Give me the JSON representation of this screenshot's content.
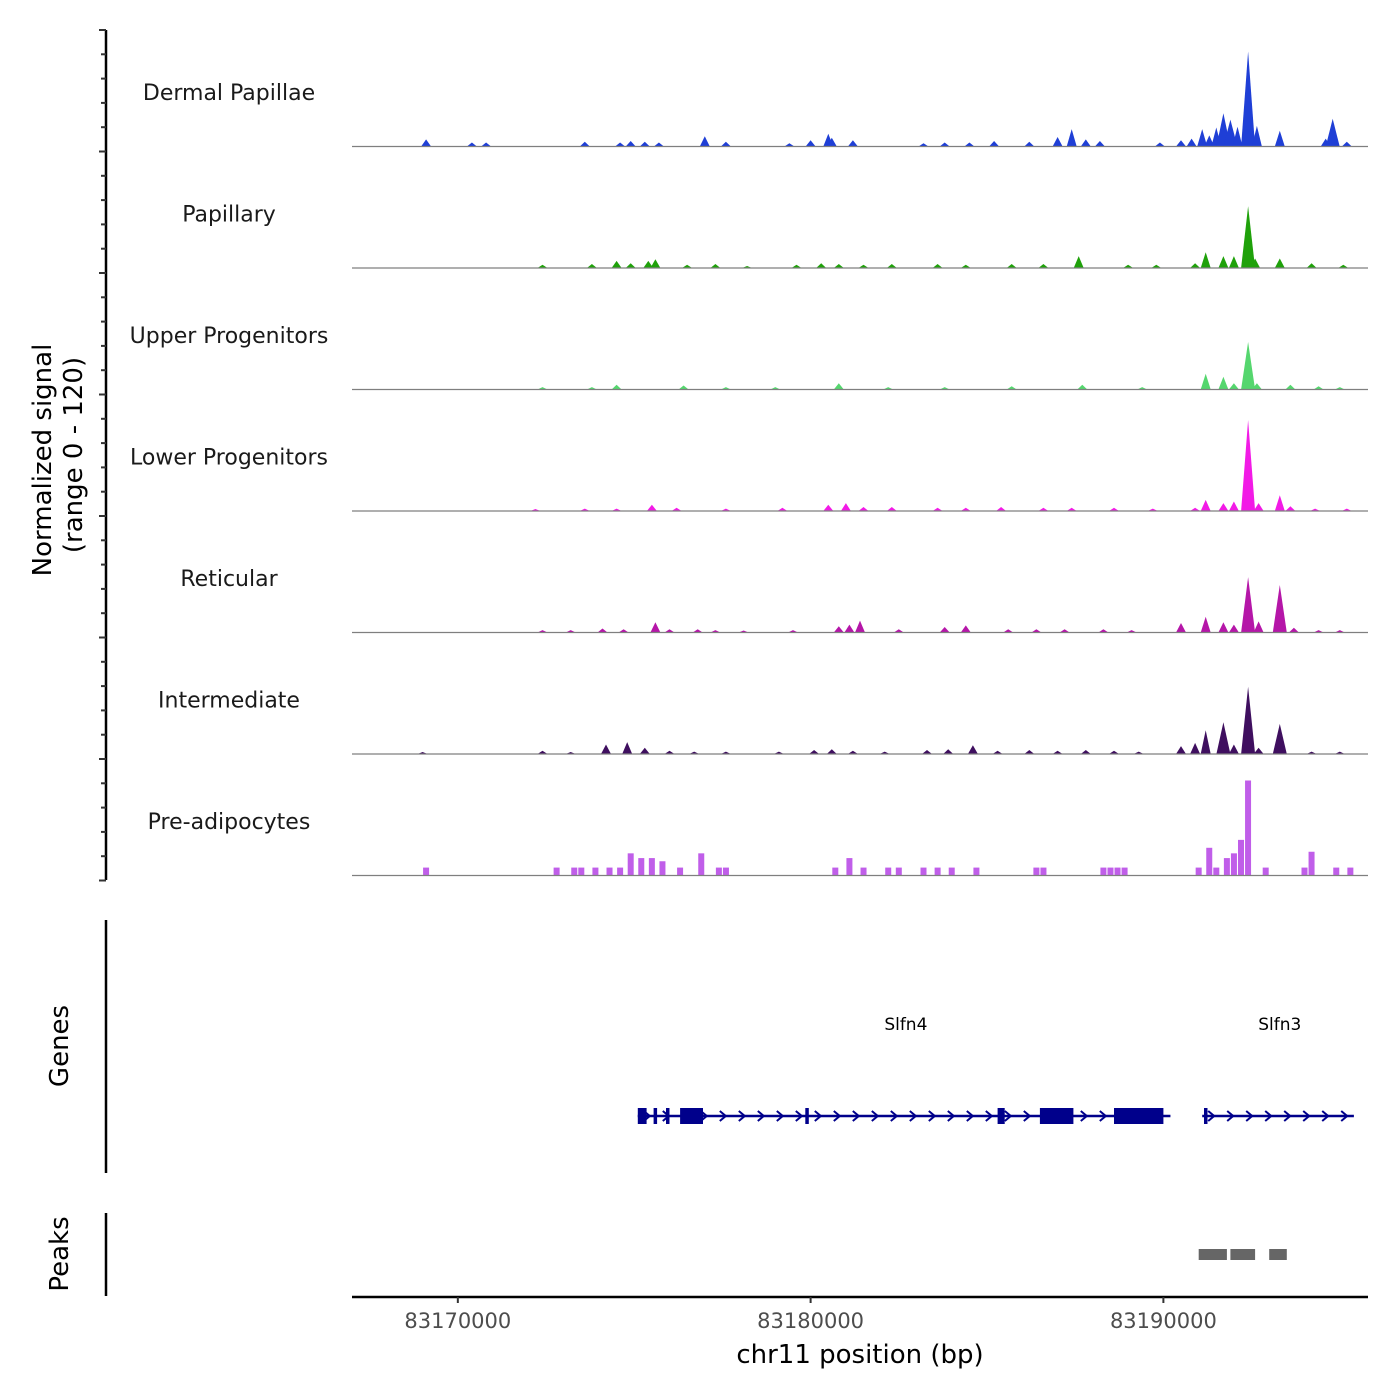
{
  "chart_data": {
    "type": "area",
    "title": "",
    "ylabel_line1": "Normalized signal",
    "ylabel_line2": "(range 0 - 120)",
    "xlabel": "chr11 position (bp)",
    "xlim": [
      83167000,
      83195800
    ],
    "ylim": [
      0,
      120
    ],
    "xticks": [
      {
        "value": 83170000,
        "label": "83170000"
      },
      {
        "value": 83180000,
        "label": "83180000"
      },
      {
        "value": 83190000,
        "label": "83190000"
      }
    ],
    "tracks": [
      {
        "name": "Dermal Papillae",
        "color": "#1f3fd6",
        "style": "dense",
        "peaks": [
          [
            83169100,
            9
          ],
          [
            83170400,
            5
          ],
          [
            83170800,
            5
          ],
          [
            83173600,
            6
          ],
          [
            83174600,
            5
          ],
          [
            83174900,
            7
          ],
          [
            83175300,
            6
          ],
          [
            83175700,
            5
          ],
          [
            83177000,
            13
          ],
          [
            83177600,
            6
          ],
          [
            83179400,
            4
          ],
          [
            83180000,
            8
          ],
          [
            83180500,
            16
          ],
          [
            83180600,
            11
          ],
          [
            83181200,
            8
          ],
          [
            83183200,
            4
          ],
          [
            83183800,
            5
          ],
          [
            83184500,
            5
          ],
          [
            83185200,
            7
          ],
          [
            83186200,
            6
          ],
          [
            83187000,
            12
          ],
          [
            83187400,
            22
          ],
          [
            83187800,
            9
          ],
          [
            83188200,
            7
          ],
          [
            83189900,
            5
          ],
          [
            83190500,
            8
          ],
          [
            83190800,
            10
          ],
          [
            83191100,
            22
          ],
          [
            83191300,
            14
          ],
          [
            83191500,
            24
          ],
          [
            83191700,
            42
          ],
          [
            83191900,
            34
          ],
          [
            83192100,
            25
          ],
          [
            83192400,
            120
          ],
          [
            83192650,
            26
          ],
          [
            83193300,
            20
          ],
          [
            83194600,
            10
          ],
          [
            83194800,
            35
          ],
          [
            83195200,
            6
          ]
        ]
      },
      {
        "name": "Papillary",
        "color": "#1fa10a",
        "style": "dense",
        "peaks": [
          [
            83172400,
            4
          ],
          [
            83173800,
            5
          ],
          [
            83174500,
            9
          ],
          [
            83174900,
            6
          ],
          [
            83175400,
            9
          ],
          [
            83175600,
            11
          ],
          [
            83176500,
            4
          ],
          [
            83177300,
            5
          ],
          [
            83178200,
            2
          ],
          [
            83179600,
            4
          ],
          [
            83180300,
            6
          ],
          [
            83180800,
            5
          ],
          [
            83181500,
            4
          ],
          [
            83182300,
            5
          ],
          [
            83183600,
            5
          ],
          [
            83184400,
            4
          ],
          [
            83185700,
            5
          ],
          [
            83186600,
            5
          ],
          [
            83187600,
            15
          ],
          [
            83189000,
            4
          ],
          [
            83189800,
            4
          ],
          [
            83190900,
            6
          ],
          [
            83191200,
            20
          ],
          [
            83191700,
            15
          ],
          [
            83192000,
            15
          ],
          [
            83192400,
            78
          ],
          [
            83192600,
            12
          ],
          [
            83193300,
            12
          ],
          [
            83194200,
            6
          ],
          [
            83195100,
            4
          ]
        ]
      },
      {
        "name": "Upper Progenitors",
        "color": "#55d66e",
        "style": "dense",
        "peaks": [
          [
            83172400,
            3
          ],
          [
            83173800,
            3
          ],
          [
            83174500,
            6
          ],
          [
            83176400,
            5
          ],
          [
            83177600,
            3
          ],
          [
            83179000,
            3
          ],
          [
            83180800,
            8
          ],
          [
            83182200,
            3
          ],
          [
            83183800,
            3
          ],
          [
            83185700,
            4
          ],
          [
            83187700,
            6
          ],
          [
            83189400,
            3
          ],
          [
            83191200,
            20
          ],
          [
            83191700,
            16
          ],
          [
            83192000,
            8
          ],
          [
            83192400,
            60
          ],
          [
            83192650,
            8
          ],
          [
            83193600,
            6
          ],
          [
            83194400,
            4
          ],
          [
            83195000,
            3
          ]
        ]
      },
      {
        "name": "Lower Progenitors",
        "color": "#f21ae6",
        "style": "dense",
        "peaks": [
          [
            83172200,
            2
          ],
          [
            83173600,
            3
          ],
          [
            83174500,
            3
          ],
          [
            83175500,
            8
          ],
          [
            83176200,
            4
          ],
          [
            83177600,
            3
          ],
          [
            83179200,
            4
          ],
          [
            83180500,
            8
          ],
          [
            83181000,
            10
          ],
          [
            83181500,
            5
          ],
          [
            83182300,
            5
          ],
          [
            83183600,
            4
          ],
          [
            83184400,
            4
          ],
          [
            83185400,
            5
          ],
          [
            83186600,
            4
          ],
          [
            83187400,
            4
          ],
          [
            83188600,
            4
          ],
          [
            83189700,
            3
          ],
          [
            83190900,
            4
          ],
          [
            83191200,
            14
          ],
          [
            83191700,
            10
          ],
          [
            83192000,
            12
          ],
          [
            83192400,
            115
          ],
          [
            83192700,
            10
          ],
          [
            83193300,
            20
          ],
          [
            83193600,
            6
          ],
          [
            83194300,
            3
          ],
          [
            83195200,
            3
          ]
        ]
      },
      {
        "name": "Reticular",
        "color": "#b516a8",
        "style": "dense",
        "peaks": [
          [
            83172400,
            3
          ],
          [
            83173200,
            3
          ],
          [
            83174100,
            5
          ],
          [
            83174700,
            4
          ],
          [
            83175600,
            13
          ],
          [
            83176000,
            4
          ],
          [
            83176800,
            4
          ],
          [
            83177300,
            3
          ],
          [
            83178100,
            2
          ],
          [
            83179500,
            3
          ],
          [
            83180800,
            8
          ],
          [
            83181100,
            10
          ],
          [
            83181400,
            15
          ],
          [
            83182500,
            4
          ],
          [
            83183800,
            7
          ],
          [
            83184400,
            9
          ],
          [
            83185600,
            4
          ],
          [
            83186400,
            4
          ],
          [
            83187200,
            4
          ],
          [
            83188300,
            4
          ],
          [
            83189100,
            3
          ],
          [
            83190500,
            12
          ],
          [
            83191200,
            20
          ],
          [
            83191700,
            13
          ],
          [
            83192000,
            10
          ],
          [
            83192400,
            70
          ],
          [
            83192700,
            14
          ],
          [
            83193300,
            60
          ],
          [
            83193700,
            6
          ],
          [
            83194400,
            3
          ],
          [
            83195000,
            3
          ]
        ]
      },
      {
        "name": "Intermediate",
        "color": "#3f0f5f",
        "style": "dense",
        "peaks": [
          [
            83169000,
            2
          ],
          [
            83172400,
            4
          ],
          [
            83173200,
            2
          ],
          [
            83174200,
            12
          ],
          [
            83174800,
            15
          ],
          [
            83175300,
            8
          ],
          [
            83176000,
            4
          ],
          [
            83176700,
            3
          ],
          [
            83177600,
            3
          ],
          [
            83179100,
            3
          ],
          [
            83180100,
            5
          ],
          [
            83180600,
            6
          ],
          [
            83181200,
            4
          ],
          [
            83182100,
            3
          ],
          [
            83183300,
            5
          ],
          [
            83183900,
            6
          ],
          [
            83184600,
            11
          ],
          [
            83185300,
            4
          ],
          [
            83186200,
            5
          ],
          [
            83187000,
            4
          ],
          [
            83187800,
            5
          ],
          [
            83188600,
            4
          ],
          [
            83189300,
            3
          ],
          [
            83190500,
            10
          ],
          [
            83190900,
            14
          ],
          [
            83191200,
            30
          ],
          [
            83191700,
            40
          ],
          [
            83192000,
            12
          ],
          [
            83192400,
            85
          ],
          [
            83192700,
            8
          ],
          [
            83193300,
            38
          ],
          [
            83194200,
            3
          ],
          [
            83195000,
            3
          ]
        ]
      },
      {
        "name": "Pre-adipocytes",
        "color": "#c05ee9",
        "style": "sparse",
        "peaks": [
          [
            83169100,
            10
          ],
          [
            83172800,
            10
          ],
          [
            83173300,
            10
          ],
          [
            83173500,
            10
          ],
          [
            83173900,
            10
          ],
          [
            83174300,
            10
          ],
          [
            83174600,
            10
          ],
          [
            83174900,
            28
          ],
          [
            83175200,
            22
          ],
          [
            83175500,
            22
          ],
          [
            83175800,
            18
          ],
          [
            83176300,
            10
          ],
          [
            83176900,
            28
          ],
          [
            83177400,
            10
          ],
          [
            83177600,
            10
          ],
          [
            83180700,
            10
          ],
          [
            83181100,
            22
          ],
          [
            83181500,
            10
          ],
          [
            83182200,
            10
          ],
          [
            83182500,
            10
          ],
          [
            83183200,
            10
          ],
          [
            83183600,
            10
          ],
          [
            83184000,
            10
          ],
          [
            83184700,
            10
          ],
          [
            83186400,
            10
          ],
          [
            83186600,
            10
          ],
          [
            83188300,
            10
          ],
          [
            83188500,
            10
          ],
          [
            83188700,
            10
          ],
          [
            83188900,
            10
          ],
          [
            83191000,
            10
          ],
          [
            83191300,
            35
          ],
          [
            83191500,
            10
          ],
          [
            83191800,
            22
          ],
          [
            83192000,
            28
          ],
          [
            83192200,
            45
          ],
          [
            83192400,
            120
          ],
          [
            83192900,
            10
          ],
          [
            83194000,
            10
          ],
          [
            83194200,
            30
          ],
          [
            83194900,
            10
          ],
          [
            83195300,
            10
          ]
        ]
      }
    ],
    "genes": [
      {
        "name": "Slfn4",
        "start": 83175100,
        "end": 83190200,
        "label_pos": 83182700,
        "exons": [
          [
            83175100,
            83175350
          ],
          [
            83175550,
            83175650
          ],
          [
            83175900,
            83176000
          ],
          [
            83176300,
            83176950
          ],
          [
            83179850,
            83179950
          ],
          [
            83185300,
            83185500
          ],
          [
            83186500,
            83187450
          ],
          [
            83188600,
            83190000
          ]
        ]
      },
      {
        "name": "Slfn3",
        "start": 83191100,
        "end": 83195400,
        "label_pos": 83193300,
        "exons": [
          [
            83191150,
            83191250
          ]
        ]
      }
    ],
    "peaks_track": [
      [
        83191000,
        83191800
      ],
      [
        83191900,
        83192600
      ],
      [
        83193000,
        83193500
      ]
    ],
    "panel_labels": {
      "genes": "Genes",
      "peaks": "Peaks"
    }
  },
  "colors": {
    "gene": "#00008b",
    "peak": "#666666",
    "baseline": "#7f7f7f"
  }
}
